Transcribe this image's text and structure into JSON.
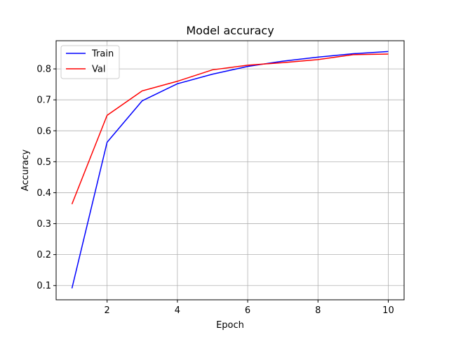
{
  "chart_data": {
    "type": "line",
    "title": "Model accuracy",
    "xlabel": "Epoch",
    "ylabel": "Accuracy",
    "xlim": [
      0.55,
      10.45
    ],
    "ylim": [
      0.054,
      0.891
    ],
    "xticks": [
      2,
      4,
      6,
      8,
      10
    ],
    "yticks": [
      0.1,
      0.2,
      0.3,
      0.4,
      0.5,
      0.6,
      0.7,
      0.8
    ],
    "grid": true,
    "legend_position": "top-left",
    "x": [
      1,
      2,
      3,
      4,
      5,
      6,
      7,
      8,
      9,
      10
    ],
    "series": [
      {
        "name": "Train",
        "color": "#0000ff",
        "values": [
          0.091,
          0.563,
          0.697,
          0.752,
          0.783,
          0.808,
          0.825,
          0.838,
          0.849,
          0.856
        ]
      },
      {
        "name": "Val",
        "color": "#ff0000",
        "values": [
          0.363,
          0.65,
          0.729,
          0.76,
          0.797,
          0.812,
          0.82,
          0.83,
          0.846,
          0.848
        ]
      }
    ]
  }
}
